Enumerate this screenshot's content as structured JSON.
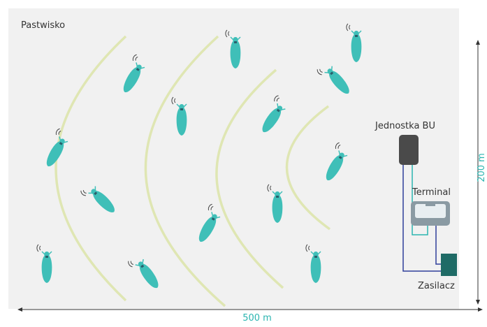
{
  "area_label": "Pastwisko",
  "devices": {
    "base_unit": "Jednostka BU",
    "terminal": "Terminal",
    "power_supply": "Zasilacz"
  },
  "dimensions": {
    "width": "500 m",
    "height": "200 m"
  }
}
